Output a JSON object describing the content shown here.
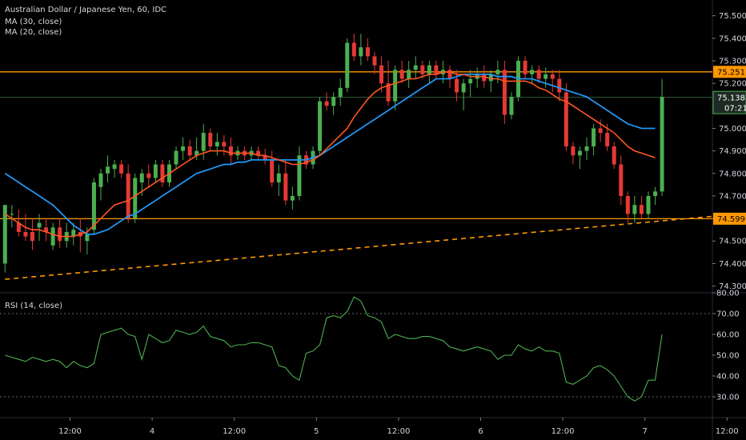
{
  "legend": {
    "symbol": "Australian Dollar / Japanese Yen, 60, IDC",
    "ma30": "MA (30, close)",
    "ma20": "MA (20, close)",
    "rsi": "RSI (14, close)"
  },
  "price_tag": {
    "value": "75.138",
    "timer": "07:21"
  },
  "colors": {
    "background": "#000000",
    "up": "#4caf50",
    "down": "#e53935",
    "ma30": "#2196f3",
    "ma20": "#ff5722",
    "level": "#ff9800",
    "rsi": "#4caf50",
    "grid_dotted": "#6b6b6b",
    "tag_dark": "#1e2a24"
  },
  "chart_data": [
    {
      "type": "candlestick",
      "title": "Australian Dollar / Japanese Yen, 60, IDC",
      "ylim": [
        74.27,
        75.57
      ],
      "y_ticks": [
        "75.500",
        "75.400",
        "75.300",
        "75.200",
        "75.100",
        "75.000",
        "74.900",
        "74.800",
        "74.700",
        "74.600",
        "74.500",
        "74.400",
        "74.300"
      ],
      "x_ticks": [
        {
          "bar": 9.5,
          "label": "12:00"
        },
        {
          "bar": 21.5,
          "label": "4"
        },
        {
          "bar": 33.5,
          "label": "12:00"
        },
        {
          "bar": 45.5,
          "label": "5"
        },
        {
          "bar": 57.5,
          "label": "12:00"
        },
        {
          "bar": 69.5,
          "label": "6"
        },
        {
          "bar": 81.5,
          "label": "12:00"
        },
        {
          "bar": 93.5,
          "label": "7"
        },
        {
          "bar": 105.5,
          "label": "12:00"
        }
      ],
      "horizontal_levels": [
        {
          "value": 75.251,
          "label": "75.251"
        },
        {
          "value": 74.599,
          "label": "74.599"
        }
      ],
      "trendline": {
        "from": [
          0,
          74.33
        ],
        "to": [
          111,
          74.63
        ]
      },
      "close_line": 75.138,
      "ohlc": [
        [
          74.4,
          74.66,
          74.36,
          74.66
        ],
        [
          74.62,
          74.66,
          74.56,
          74.62
        ],
        [
          74.58,
          74.64,
          74.52,
          74.54
        ],
        [
          74.54,
          74.62,
          74.5,
          74.52
        ],
        [
          74.54,
          74.6,
          74.46,
          74.5
        ],
        [
          74.56,
          74.62,
          74.5,
          74.58
        ],
        [
          74.56,
          74.6,
          74.5,
          74.54
        ],
        [
          74.48,
          74.58,
          74.46,
          74.56
        ],
        [
          74.56,
          74.6,
          74.47,
          74.5
        ],
        [
          74.5,
          74.58,
          74.47,
          74.54
        ],
        [
          74.52,
          74.58,
          74.48,
          74.55
        ],
        [
          74.54,
          74.6,
          74.45,
          74.52
        ],
        [
          74.5,
          74.56,
          74.44,
          74.53
        ],
        [
          74.55,
          74.78,
          74.53,
          74.76
        ],
        [
          74.74,
          74.82,
          74.68,
          74.8
        ],
        [
          74.8,
          74.88,
          74.76,
          74.83
        ],
        [
          74.82,
          74.86,
          74.78,
          74.84
        ],
        [
          74.84,
          74.86,
          74.78,
          74.8
        ],
        [
          74.8,
          74.84,
          74.58,
          74.6
        ],
        [
          74.6,
          74.8,
          74.58,
          74.78
        ],
        [
          74.76,
          74.82,
          74.7,
          74.8
        ],
        [
          74.8,
          74.84,
          74.74,
          74.78
        ],
        [
          74.78,
          74.86,
          74.76,
          74.84
        ],
        [
          74.84,
          74.86,
          74.74,
          74.76
        ],
        [
          74.76,
          74.86,
          74.74,
          74.84
        ],
        [
          74.84,
          74.92,
          74.82,
          74.9
        ],
        [
          74.9,
          74.96,
          74.86,
          74.92
        ],
        [
          74.92,
          74.95,
          74.86,
          74.88
        ],
        [
          74.88,
          74.96,
          74.86,
          74.9
        ],
        [
          74.9,
          75.02,
          74.86,
          74.98
        ],
        [
          74.98,
          75.0,
          74.9,
          74.92
        ],
        [
          74.92,
          74.98,
          74.88,
          74.94
        ],
        [
          74.94,
          74.97,
          74.88,
          74.92
        ],
        [
          74.92,
          74.96,
          74.84,
          74.88
        ],
        [
          74.88,
          74.92,
          74.86,
          74.9
        ],
        [
          74.9,
          74.92,
          74.86,
          74.88
        ],
        [
          74.88,
          74.92,
          74.86,
          74.9
        ],
        [
          74.9,
          74.92,
          74.86,
          74.88
        ],
        [
          74.88,
          74.91,
          74.84,
          74.86
        ],
        [
          74.86,
          74.9,
          74.74,
          74.76
        ],
        [
          74.76,
          74.84,
          74.7,
          74.8
        ],
        [
          74.8,
          74.86,
          74.66,
          74.68
        ],
        [
          74.68,
          74.74,
          74.64,
          74.7
        ],
        [
          74.7,
          74.92,
          74.68,
          74.88
        ],
        [
          74.88,
          74.9,
          74.82,
          74.84
        ],
        [
          74.84,
          74.92,
          74.82,
          74.9
        ],
        [
          74.9,
          75.14,
          74.88,
          75.12
        ],
        [
          75.12,
          75.16,
          75.08,
          75.1
        ],
        [
          75.1,
          75.16,
          75.06,
          75.14
        ],
        [
          75.14,
          75.22,
          75.1,
          75.18
        ],
        [
          75.18,
          75.4,
          75.16,
          75.38
        ],
        [
          75.38,
          75.42,
          75.3,
          75.32
        ],
        [
          75.32,
          75.42,
          75.28,
          75.36
        ],
        [
          75.36,
          75.4,
          75.3,
          75.32
        ],
        [
          75.32,
          75.34,
          75.24,
          75.28
        ],
        [
          75.28,
          75.32,
          75.16,
          75.2
        ],
        [
          75.2,
          75.3,
          75.1,
          75.12
        ],
        [
          75.12,
          75.28,
          75.08,
          75.26
        ],
        [
          75.26,
          75.3,
          75.2,
          75.22
        ],
        [
          75.22,
          75.3,
          75.18,
          75.26
        ],
        [
          75.26,
          75.32,
          75.22,
          75.28
        ],
        [
          75.28,
          75.3,
          75.22,
          75.24
        ],
        [
          75.24,
          75.3,
          75.2,
          75.28
        ],
        [
          75.28,
          75.3,
          75.22,
          75.24
        ],
        [
          75.24,
          75.3,
          75.2,
          75.26
        ],
        [
          75.26,
          75.28,
          75.18,
          75.22
        ],
        [
          75.22,
          75.26,
          75.12,
          75.16
        ],
        [
          75.16,
          75.22,
          75.08,
          75.2
        ],
        [
          75.2,
          75.26,
          75.14,
          75.22
        ],
        [
          75.22,
          75.27,
          75.18,
          75.24
        ],
        [
          75.24,
          75.28,
          75.18,
          75.21
        ],
        [
          75.21,
          75.26,
          75.16,
          75.24
        ],
        [
          75.24,
          75.3,
          75.2,
          75.26
        ],
        [
          75.26,
          75.3,
          75.02,
          75.06
        ],
        [
          75.06,
          75.16,
          75.04,
          75.14
        ],
        [
          75.14,
          75.32,
          75.12,
          75.3
        ],
        [
          75.3,
          75.32,
          75.22,
          75.24
        ],
        [
          75.24,
          75.28,
          75.2,
          75.26
        ],
        [
          75.26,
          75.28,
          75.2,
          75.22
        ],
        [
          75.22,
          75.27,
          75.18,
          75.24
        ],
        [
          75.24,
          75.26,
          75.16,
          75.22
        ],
        [
          75.22,
          75.26,
          75.12,
          75.16
        ],
        [
          75.16,
          75.2,
          74.9,
          74.92
        ],
        [
          74.92,
          74.94,
          74.84,
          74.88
        ],
        [
          74.88,
          74.92,
          74.82,
          74.9
        ],
        [
          74.9,
          74.96,
          74.86,
          74.92
        ],
        [
          74.92,
          75.02,
          74.88,
          75.0
        ],
        [
          75.0,
          75.04,
          74.94,
          74.98
        ],
        [
          74.98,
          75.02,
          74.9,
          74.92
        ],
        [
          74.92,
          74.94,
          74.82,
          74.84
        ],
        [
          74.84,
          74.88,
          74.66,
          74.7
        ],
        [
          74.7,
          74.72,
          74.58,
          74.62
        ],
        [
          74.62,
          74.7,
          74.58,
          74.66
        ],
        [
          74.66,
          74.7,
          74.6,
          74.62
        ],
        [
          74.62,
          74.72,
          74.6,
          74.7
        ],
        [
          74.7,
          74.74,
          74.66,
          74.72
        ],
        [
          74.72,
          75.22,
          74.7,
          75.14
        ]
      ],
      "ma20": [
        74.62,
        74.6,
        74.58,
        74.56,
        74.55,
        74.55,
        74.54,
        74.53,
        74.52,
        74.52,
        74.52,
        74.53,
        74.54,
        74.57,
        74.6,
        74.63,
        74.66,
        74.67,
        74.68,
        74.7,
        74.72,
        74.74,
        74.76,
        74.78,
        74.8,
        74.82,
        74.84,
        74.86,
        74.88,
        74.89,
        74.9,
        74.9,
        74.9,
        74.89,
        74.89,
        74.89,
        74.89,
        74.88,
        74.88,
        74.87,
        74.86,
        74.85,
        74.84,
        74.84,
        74.85,
        74.86,
        74.88,
        74.91,
        74.94,
        74.97,
        75.0,
        75.05,
        75.09,
        75.13,
        75.16,
        75.18,
        75.19,
        75.2,
        75.21,
        75.22,
        75.22,
        75.23,
        75.24,
        75.24,
        75.25,
        75.25,
        75.24,
        75.24,
        75.23,
        75.23,
        75.23,
        75.22,
        75.22,
        75.21,
        75.21,
        75.21,
        75.21,
        75.2,
        75.18,
        75.17,
        75.15,
        75.13,
        75.12,
        75.1,
        75.08,
        75.06,
        75.04,
        75.02,
        75.0,
        74.98,
        74.95,
        74.92,
        74.9,
        74.89,
        74.88,
        74.87
      ],
      "ma30": [
        74.8,
        74.78,
        74.76,
        74.74,
        74.72,
        74.7,
        74.68,
        74.66,
        74.63,
        74.6,
        74.57,
        74.55,
        74.53,
        74.53,
        74.54,
        74.55,
        74.57,
        74.59,
        74.61,
        74.62,
        74.64,
        74.66,
        74.68,
        74.7,
        74.72,
        74.74,
        74.76,
        74.78,
        74.8,
        74.81,
        74.82,
        74.83,
        74.84,
        74.84,
        74.85,
        74.85,
        74.86,
        74.86,
        74.86,
        74.86,
        74.86,
        74.86,
        74.86,
        74.86,
        74.86,
        74.87,
        74.88,
        74.9,
        74.92,
        74.94,
        74.96,
        74.98,
        75.0,
        75.02,
        75.04,
        75.06,
        75.08,
        75.1,
        75.12,
        75.14,
        75.16,
        75.18,
        75.2,
        75.22,
        75.22,
        75.22,
        75.23,
        75.24,
        75.24,
        75.24,
        75.24,
        75.24,
        75.23,
        75.23,
        75.23,
        75.22,
        75.22,
        75.22,
        75.21,
        75.2,
        75.19,
        75.18,
        75.17,
        75.16,
        75.15,
        75.14,
        75.12,
        75.1,
        75.08,
        75.06,
        75.04,
        75.02,
        75.01,
        75.0,
        75.0,
        75.0
      ]
    },
    {
      "type": "line",
      "title": "RSI (14, close)",
      "ylim": [
        20,
        80
      ],
      "y_ticks": [
        "80.00",
        "70.00",
        "60.00",
        "50.00",
        "40.00",
        "30.00"
      ],
      "bands": [
        70,
        30
      ],
      "values": [
        50,
        49,
        48,
        47,
        49,
        48,
        47,
        48,
        47,
        44,
        47,
        45,
        44,
        46,
        60,
        61,
        62,
        63,
        60,
        59,
        48,
        60,
        58,
        56,
        57,
        62,
        61,
        60,
        61,
        64,
        59,
        58,
        57,
        54,
        55,
        55,
        56,
        56,
        55,
        54,
        45,
        44,
        40,
        38,
        51,
        52,
        55,
        68,
        69,
        68,
        71,
        78,
        76,
        69,
        68,
        66,
        58,
        60,
        59,
        58,
        58,
        59,
        59,
        58,
        57,
        54,
        53,
        52,
        53,
        54,
        53,
        52,
        48,
        50,
        50,
        55,
        53,
        52,
        54,
        52,
        52,
        51,
        37,
        36,
        38,
        40,
        44,
        45,
        43,
        40,
        35,
        30,
        28,
        30,
        38,
        38,
        60
      ]
    }
  ]
}
